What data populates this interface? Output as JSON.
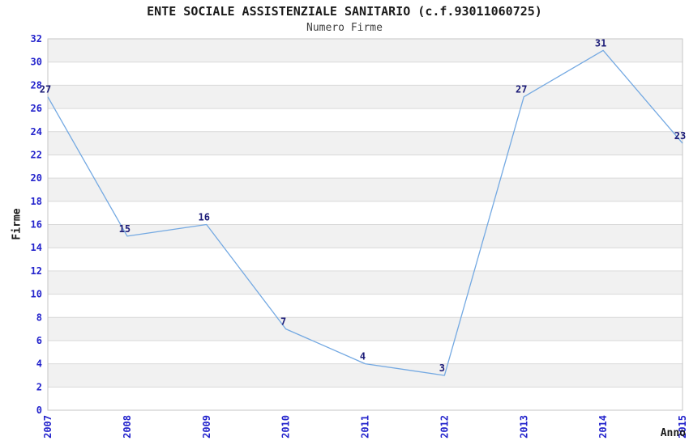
{
  "chart_data": {
    "type": "line",
    "title": "ENTE SOCIALE ASSISTENZIALE SANITARIO (c.f.93011060725)",
    "subtitle": "Numero Firme",
    "xlabel": "Anno",
    "ylabel": "Firme",
    "x": [
      "2007",
      "2008",
      "2009",
      "2010",
      "2011",
      "2012",
      "2013",
      "2014",
      "2015"
    ],
    "values": [
      27,
      15,
      16,
      7,
      4,
      3,
      27,
      31,
      23
    ],
    "ylim": [
      0,
      32
    ],
    "ytick_step": 2,
    "grid": "horizontal-alternating-bands",
    "legend": "none",
    "point_labels_visible": true,
    "colors": {
      "line": "#74a9e2",
      "tick_label": "#2424cc",
      "point_label": "#1c1c78",
      "title": "#1a1a1a",
      "subtitle": "#404040",
      "axis_label": "#1a1a1a",
      "band": "#f1f1f1",
      "band_alt": "#ffffff",
      "gridline": "#d9d9d9",
      "border": "#c6c6c6",
      "background": "#ffffff"
    }
  }
}
